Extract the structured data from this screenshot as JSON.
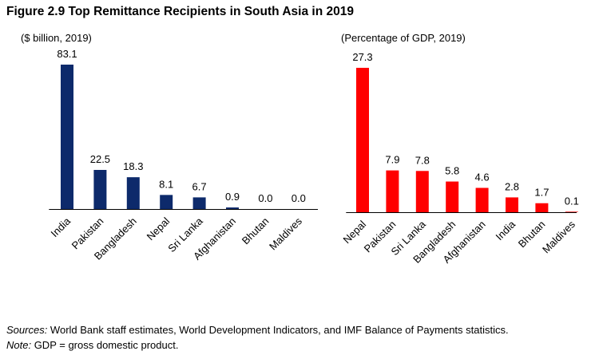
{
  "title": "Figure 2.9 Top Remittance Recipients in South Asia in 2019",
  "colors": {
    "left_bar": "#0d2a6b",
    "right_bar": "#ff0000",
    "axis": "#000000"
  },
  "chart_data": [
    {
      "type": "bar",
      "unit_label": "($ billion, 2019)",
      "categories": [
        "India",
        "Pakistan",
        "Bangladesh",
        "Nepal",
        "Sri Lanka",
        "Afghanistan",
        "Bhutan",
        "Maldives"
      ],
      "values": [
        83.1,
        22.5,
        18.3,
        8.1,
        6.7,
        0.9,
        0.0,
        0.0
      ],
      "value_labels": [
        "83.1",
        "22.5",
        "18.3",
        "8.1",
        "6.7",
        "0.9",
        "0.0",
        "0.0"
      ],
      "ylim": [
        0,
        83.1
      ]
    },
    {
      "type": "bar",
      "unit_label": "(Percentage of GDP, 2019)",
      "categories": [
        "Nepal",
        "Pakistan",
        "Sri Lanka",
        "Bangladesh",
        "Afghanistan",
        "India",
        "Bhutan",
        "Maldives"
      ],
      "values": [
        27.3,
        7.9,
        7.8,
        5.8,
        4.6,
        2.8,
        1.7,
        0.1
      ],
      "value_labels": [
        "27.3",
        "7.9",
        "7.8",
        "5.8",
        "4.6",
        "2.8",
        "1.7",
        "0.1"
      ],
      "ylim": [
        0,
        27.3
      ]
    }
  ],
  "footer": {
    "sources_label": "Sources:",
    "sources_text": " World Bank staff estimates, World Development Indicators, and IMF Balance of Payments statistics.",
    "note_label": "Note:",
    "note_text": " GDP = gross domestic product."
  }
}
